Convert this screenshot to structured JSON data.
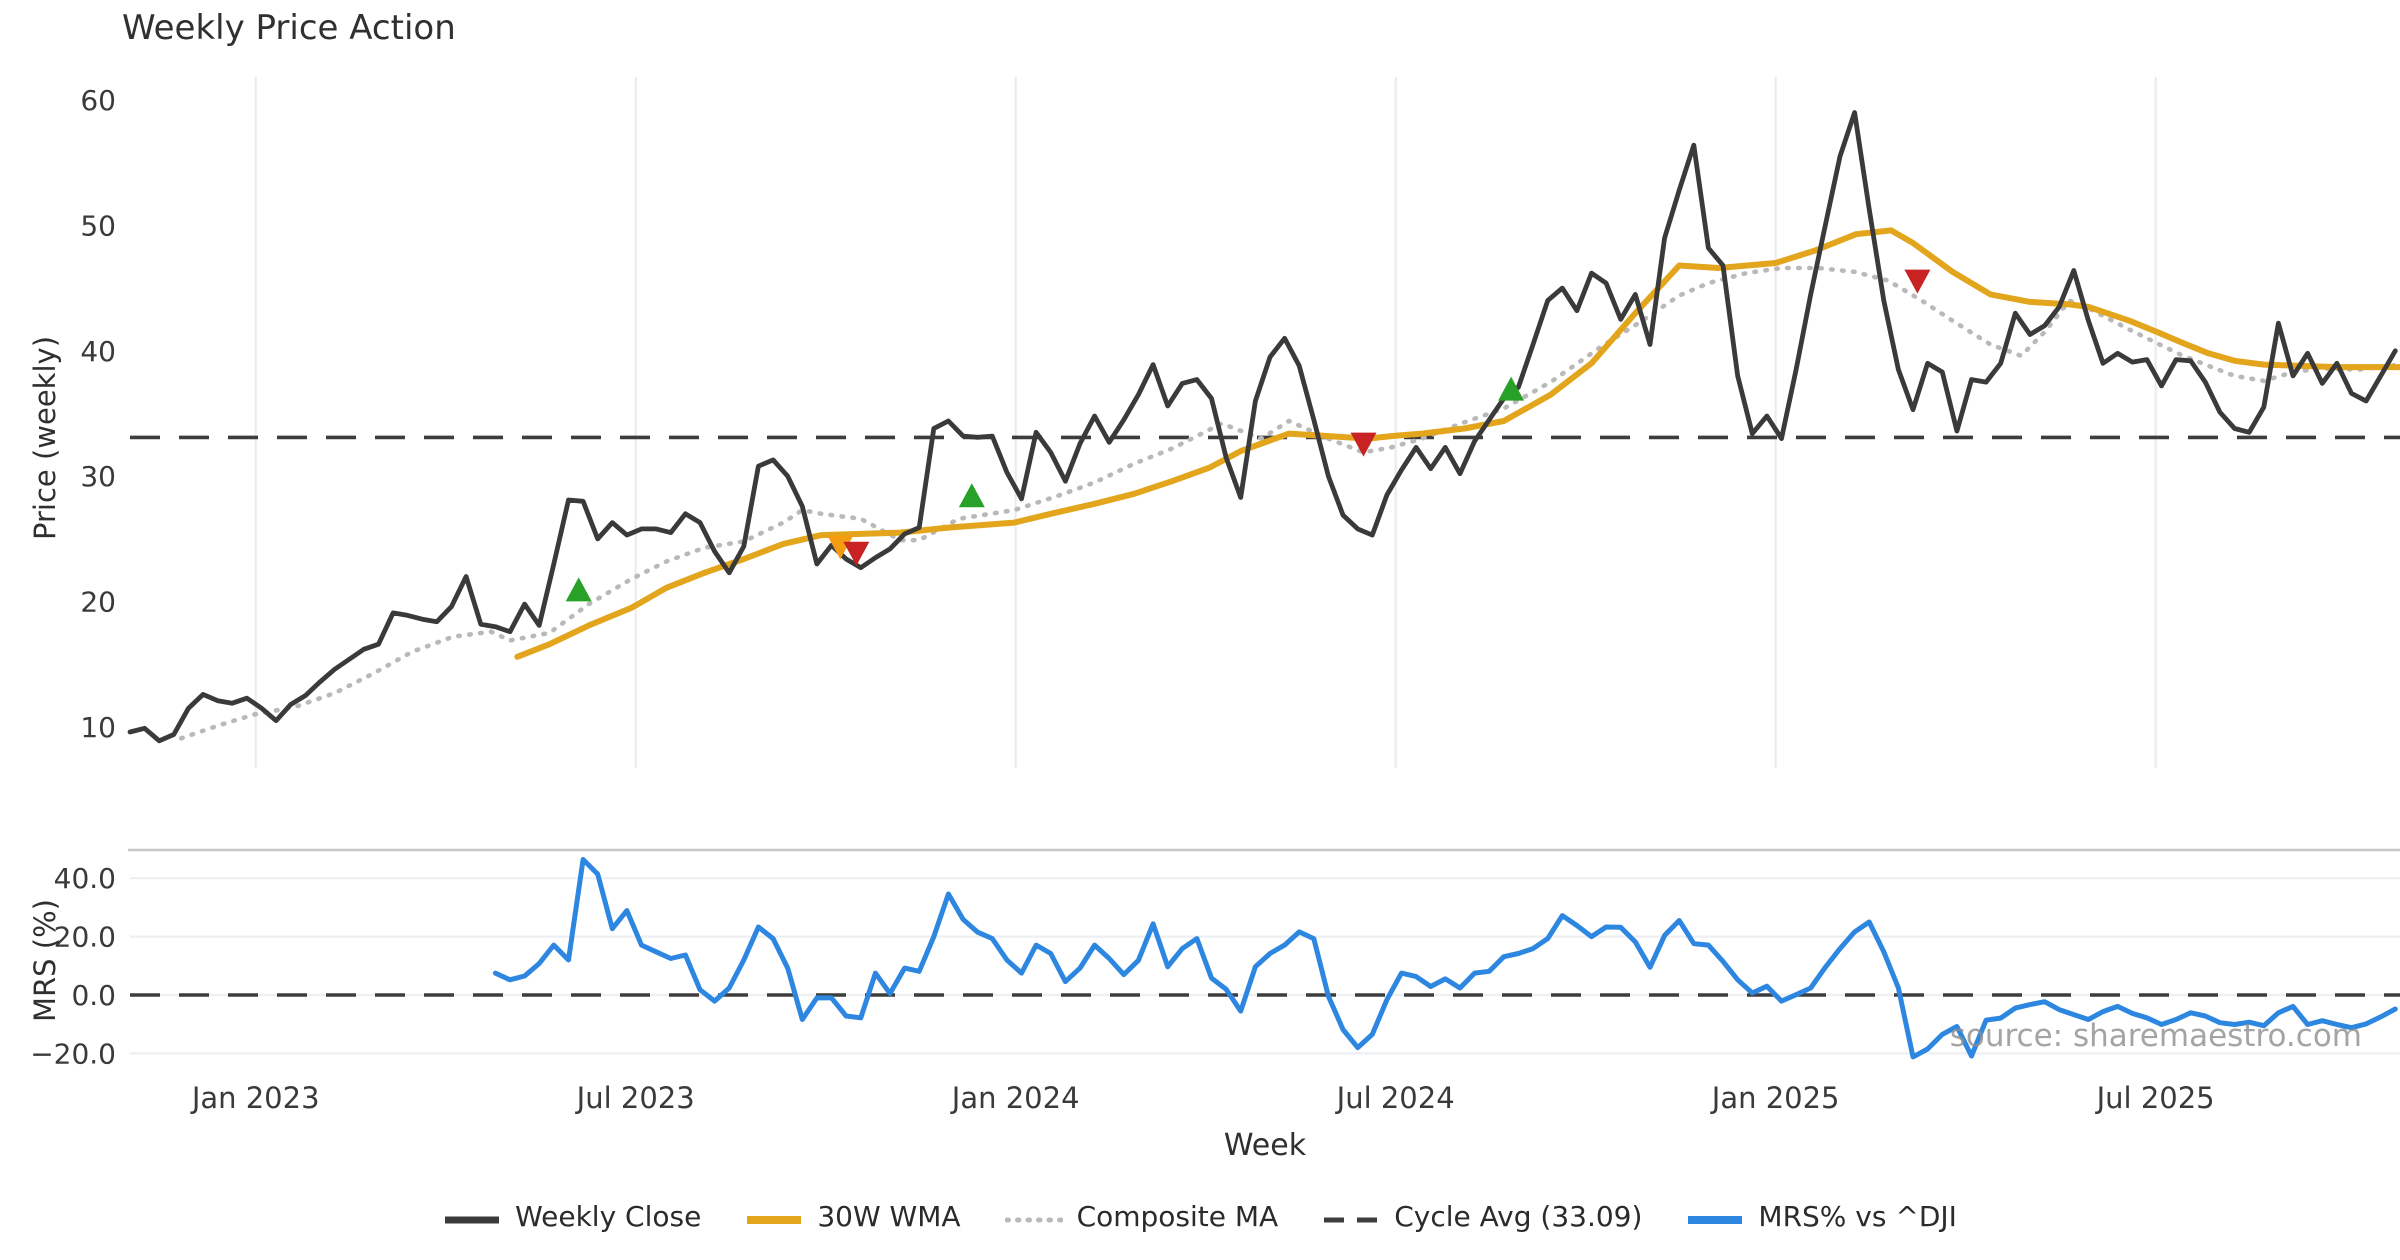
{
  "title": "Weekly Price Action",
  "watermark": "source: sharemaestro.com",
  "colors": {
    "close": "#3a3a3a",
    "wma": "#e2a51c",
    "composite": "#b9b9b9",
    "cycle": "#3d3d3d",
    "mrs": "#2d87e0",
    "buy": "#27a127",
    "sell": "#c92222",
    "warn": "#f49c12",
    "grid_v": "#ececec",
    "grid_h": "#edeff2",
    "panel_border": "#c8c8c8",
    "tick_text": "#3a3a3a"
  },
  "x_axis": {
    "label": "Week",
    "ticks": [
      {
        "week": 8.6,
        "label": "Jan 2023"
      },
      {
        "week": 34.6,
        "label": "Jul 2023"
      },
      {
        "week": 60.6,
        "label": "Jan 2024"
      },
      {
        "week": 86.6,
        "label": "Jul 2024"
      },
      {
        "week": 112.6,
        "label": "Jan 2025"
      },
      {
        "week": 138.6,
        "label": "Jul 2025"
      }
    ]
  },
  "legend": [
    {
      "label": "Weekly Close",
      "color": "#3a3a3a",
      "style": "solid"
    },
    {
      "label": "30W WMA",
      "color": "#e2a51c",
      "style": "solid-thick"
    },
    {
      "label": "Composite MA",
      "color": "#b9b9b9",
      "style": "dotted"
    },
    {
      "label": "Cycle Avg (33.09)",
      "color": "#3d3d3d",
      "style": "dashed"
    },
    {
      "label": "MRS% vs ^DJI",
      "color": "#2d87e0",
      "style": "solid-thick"
    }
  ],
  "chart_data": [
    {
      "type": "line",
      "panel": "price",
      "title": "Weekly Price Action",
      "ylabel": "Price (weekly)",
      "xlabel": "Week",
      "ylim": [
        6.5,
        61.8
      ],
      "yticks": [
        60,
        50,
        40,
        30,
        20,
        10
      ],
      "cycle_avg": 33.09,
      "x_unit": "week_index_from_2022-11",
      "close_weekly": [
        9.6,
        9.9,
        8.9,
        9.4,
        11.5,
        12.6,
        12.1,
        11.9,
        12.3,
        11.5,
        10.5,
        11.8,
        12.5,
        13.6,
        14.6,
        15.4,
        16.2,
        16.6,
        19.1,
        18.9,
        18.6,
        18.4,
        19.6,
        22.0,
        18.2,
        18.0,
        17.6,
        19.8,
        18.1,
        23.0,
        28.1,
        28.0,
        25.0,
        26.3,
        25.3,
        25.8,
        25.8,
        25.5,
        27.0,
        26.3,
        24.0,
        22.3,
        24.4,
        30.8,
        31.3,
        30.0,
        27.6,
        23.0,
        24.5,
        23.4,
        22.7,
        23.5,
        24.2,
        25.4,
        25.9,
        33.8,
        34.4,
        33.2,
        33.1,
        33.2,
        30.3,
        28.2,
        33.5,
        31.9,
        29.6,
        32.6,
        34.8,
        32.7,
        34.5,
        36.5,
        38.9,
        35.6,
        37.4,
        37.7,
        36.2,
        31.5,
        28.3,
        36.0,
        39.5,
        41.0,
        38.8,
        34.5,
        30.0,
        26.9,
        25.8,
        25.3,
        28.5,
        30.5,
        32.3,
        30.6,
        32.3,
        30.2,
        32.8,
        34.5,
        36.2,
        37.1,
        40.5,
        44.0,
        45.0,
        43.2,
        46.2,
        45.4,
        42.5,
        44.5,
        40.5,
        49.0,
        52.8,
        56.4,
        48.2,
        46.8,
        38.0,
        33.4,
        34.8,
        33.0,
        38.5,
        44.5,
        50.0,
        55.5,
        59.0,
        51.3,
        44.0,
        38.5,
        35.3,
        39.0,
        38.3,
        33.6,
        37.7,
        37.5,
        39.0,
        43.0,
        41.3,
        42.0,
        43.5,
        46.4,
        42.4,
        39.0,
        39.8,
        39.1,
        39.3,
        37.2,
        39.3,
        39.2,
        37.5,
        35.1,
        33.8,
        33.5,
        35.5,
        42.2,
        38.0,
        39.8,
        37.4,
        39.0,
        36.6,
        36.0,
        38.0,
        40.0
      ],
      "wma_30w": [
        [
          26.5,
          15.6
        ],
        [
          28.7,
          16.6
        ],
        [
          31.4,
          18.1
        ],
        [
          34.3,
          19.5
        ],
        [
          36.7,
          21.1
        ],
        [
          39.3,
          22.3
        ],
        [
          42,
          23.4
        ],
        [
          44.7,
          24.6
        ],
        [
          47.3,
          25.3
        ],
        [
          50,
          25.4
        ],
        [
          52.7,
          25.5
        ],
        [
          56,
          25.9
        ],
        [
          60.5,
          26.3
        ],
        [
          63,
          27.0
        ],
        [
          66,
          27.8
        ],
        [
          68.7,
          28.6
        ],
        [
          71.3,
          29.6
        ],
        [
          73.9,
          30.7
        ],
        [
          76,
          32.0
        ],
        [
          79.3,
          33.4
        ],
        [
          82,
          33.2
        ],
        [
          84.7,
          33.0
        ],
        [
          86.3,
          33.2
        ],
        [
          88.4,
          33.4
        ],
        [
          91.3,
          33.8
        ],
        [
          94,
          34.4
        ],
        [
          97.2,
          36.5
        ],
        [
          100,
          39.0
        ],
        [
          103,
          43.0
        ],
        [
          106,
          46.8
        ],
        [
          108.7,
          46.6
        ],
        [
          112.6,
          47.0
        ],
        [
          115.3,
          48.0
        ],
        [
          118.1,
          49.3
        ],
        [
          120.5,
          49.6
        ],
        [
          122,
          48.6
        ],
        [
          124.7,
          46.3
        ],
        [
          127.3,
          44.5
        ],
        [
          130,
          43.9
        ],
        [
          132.7,
          43.7
        ],
        [
          134,
          43.5
        ],
        [
          136.8,
          42.4
        ],
        [
          138.7,
          41.5
        ],
        [
          140.3,
          40.7
        ],
        [
          142.2,
          39.8
        ],
        [
          144,
          39.2
        ],
        [
          146,
          38.9
        ],
        [
          148.3,
          38.8
        ],
        [
          151,
          38.7
        ],
        [
          155.3,
          38.7
        ]
      ],
      "composite_ma": [
        [
          3.5,
          9.1
        ],
        [
          6,
          10.1
        ],
        [
          8.5,
          11.0
        ],
        [
          11.3,
          11.6
        ],
        [
          14,
          12.7
        ],
        [
          16.7,
          14.3
        ],
        [
          19.3,
          16.0
        ],
        [
          22.1,
          17.2
        ],
        [
          24.7,
          17.6
        ],
        [
          26,
          16.9
        ],
        [
          28.7,
          17.5
        ],
        [
          31.4,
          19.8
        ],
        [
          34.3,
          21.8
        ],
        [
          36.7,
          23.2
        ],
        [
          39.3,
          24.3
        ],
        [
          42,
          24.8
        ],
        [
          44.7,
          26.3
        ],
        [
          46,
          27.3
        ],
        [
          47.3,
          27.0
        ],
        [
          50,
          26.6
        ],
        [
          52.7,
          24.9
        ],
        [
          54,
          24.9
        ],
        [
          56.7,
          26.6
        ],
        [
          60.5,
          27.3
        ],
        [
          63.4,
          28.4
        ],
        [
          66,
          29.5
        ],
        [
          68.7,
          31.0
        ],
        [
          71.3,
          32.2
        ],
        [
          74.7,
          34.2
        ],
        [
          77.4,
          33.0
        ],
        [
          79.3,
          34.4
        ],
        [
          82,
          33.0
        ],
        [
          84.4,
          31.9
        ],
        [
          86.3,
          32.3
        ],
        [
          88.4,
          33.0
        ],
        [
          91.3,
          34.3
        ],
        [
          94,
          35.4
        ],
        [
          97.2,
          37.5
        ],
        [
          100.5,
          40.2
        ],
        [
          103.2,
          42.2
        ],
        [
          106,
          44.4
        ],
        [
          108,
          45.4
        ],
        [
          110.6,
          46.2
        ],
        [
          113,
          46.6
        ],
        [
          115.5,
          46.6
        ],
        [
          118,
          46.3
        ],
        [
          120.3,
          45.6
        ],
        [
          122.6,
          44.0
        ],
        [
          124.7,
          42.4
        ],
        [
          127.3,
          40.5
        ],
        [
          129.4,
          39.6
        ],
        [
          131,
          41.5
        ],
        [
          132.7,
          44.0
        ],
        [
          134,
          43.4
        ],
        [
          136.8,
          41.7
        ],
        [
          138.7,
          40.6
        ],
        [
          140.3,
          39.7
        ],
        [
          142.2,
          38.8
        ],
        [
          144,
          38.0
        ],
        [
          146,
          37.6
        ],
        [
          148,
          38.3
        ],
        [
          150,
          38.6
        ],
        [
          152.5,
          38.5
        ],
        [
          155.3,
          38.9
        ]
      ],
      "markers": {
        "buy_up_green": [
          [
            30.7,
            20.9
          ],
          [
            57.6,
            28.4
          ],
          [
            94.5,
            36.9
          ]
        ],
        "warn_down_orange": [
          [
            48.6,
            24.4
          ]
        ],
        "sell_down_red": [
          [
            49.7,
            23.9
          ],
          [
            84.4,
            32.6
          ],
          [
            122.3,
            45.6
          ]
        ]
      }
    },
    {
      "type": "line",
      "panel": "mrs",
      "ylabel": "MRS (%)",
      "ylim": [
        -26,
        49.5
      ],
      "yticks": [
        40,
        20,
        0,
        -20
      ],
      "ytick_labels": [
        "40.0",
        "20.0",
        "0.0",
        "−20.0"
      ],
      "zero_line": 0,
      "mrs_weekly": [
        null,
        null,
        null,
        null,
        null,
        null,
        null,
        null,
        null,
        null,
        null,
        null,
        null,
        null,
        null,
        null,
        null,
        null,
        null,
        null,
        null,
        null,
        null,
        null,
        null,
        7.5,
        5.2,
        6.5,
        10.8,
        17.1,
        12.0,
        46.4,
        41.4,
        22.7,
        28.9,
        17.1,
        14.8,
        12.5,
        13.7,
        1.8,
        -2.1,
        2.4,
        12.0,
        23.3,
        19.3,
        9.2,
        -8.4,
        -1.0,
        -1.0,
        -7.2,
        -7.8,
        7.5,
        0.5,
        9.2,
        8.1,
        20.0,
        34.6,
        25.9,
        21.5,
        19.3,
        12.0,
        7.5,
        17.1,
        14.2,
        4.6,
        9.2,
        17.1,
        12.5,
        7.0,
        11.9,
        24.4,
        9.7,
        15.9,
        19.3,
        5.8,
        2.0,
        -5.5,
        9.7,
        14.2,
        17.1,
        21.6,
        19.3,
        -0.4,
        -11.8,
        -18.0,
        -13.5,
        -1.6,
        7.5,
        6.3,
        2.9,
        5.5,
        2.4,
        7.5,
        8.1,
        13.1,
        14.2,
        15.9,
        19.3,
        27.2,
        23.8,
        20.0,
        23.3,
        23.2,
        18.2,
        9.5,
        20.4,
        25.5,
        17.6,
        17.1,
        11.5,
        5.2,
        0.7,
        3.0,
        -2.1,
        0.1,
        2.4,
        9.5,
        15.9,
        21.6,
        25.0,
        14.8,
        2.4,
        -21.2,
        -18.5,
        -13.5,
        -10.8,
        -20.9,
        -8.6,
        -7.9,
        -4.5,
        -3.3,
        -2.3,
        -5.0,
        -6.7,
        -8.4,
        -5.7,
        -3.9,
        -6.3,
        -7.8,
        -10.1,
        -8.4,
        -6.1,
        -7.2,
        -9.5,
        -10.1,
        -9.3,
        -10.5,
        -6.1,
        -3.9,
        -10.1,
        -8.8,
        -10.1,
        -11.2,
        -9.9,
        -7.5,
        -4.8
      ]
    }
  ]
}
